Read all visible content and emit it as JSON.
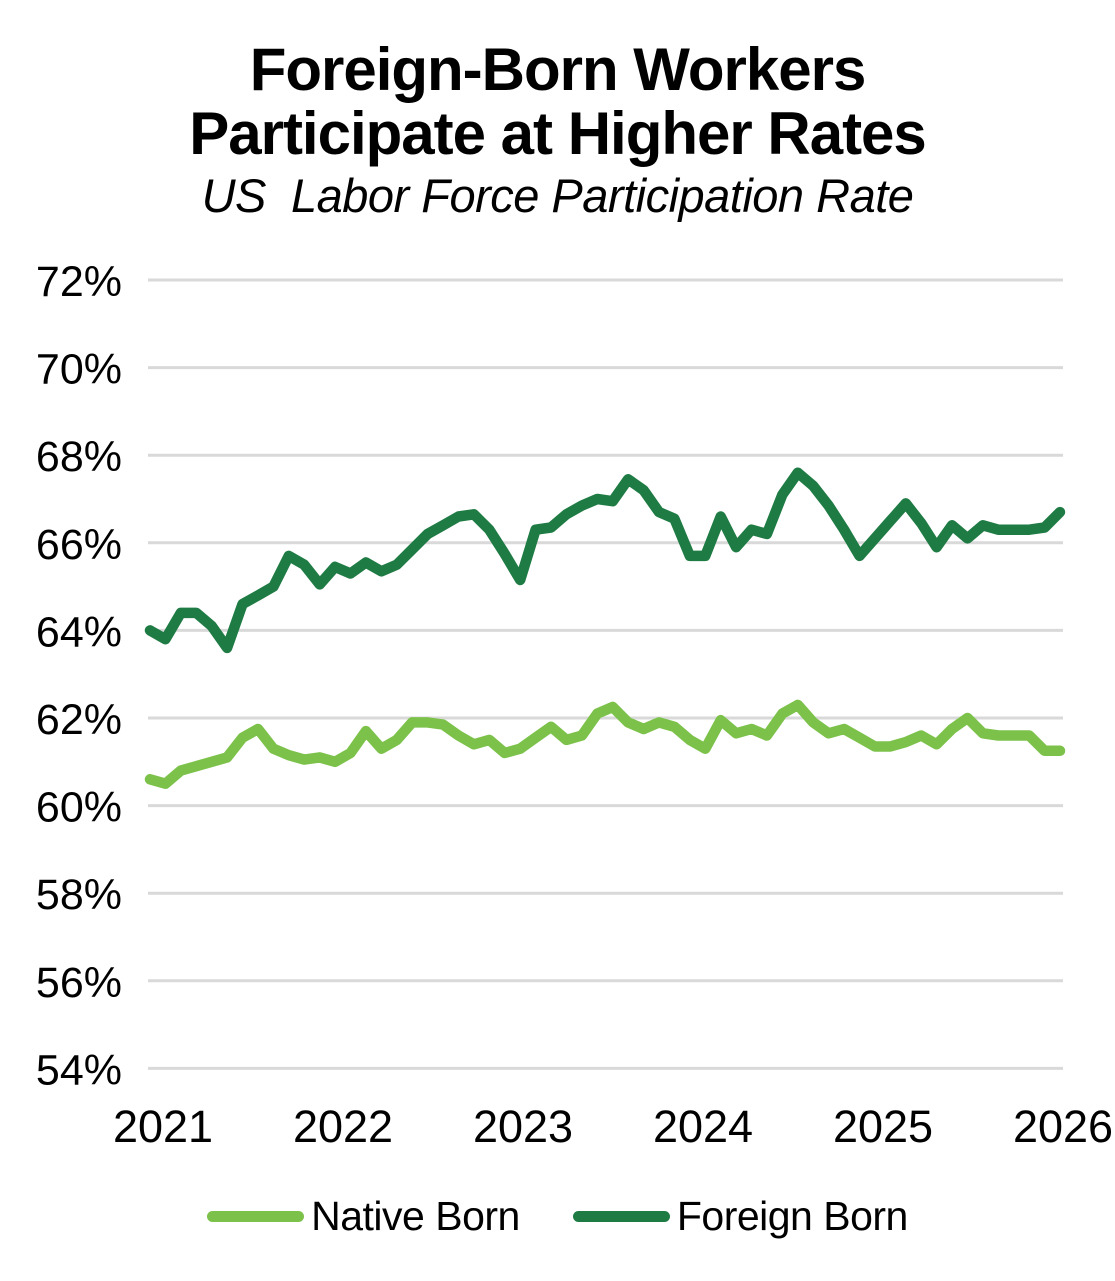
{
  "title": {
    "line1": "Foreign-Born Workers",
    "line2": "Participate at Higher Rates",
    "subtitle": "US  Labor Force Participation Rate"
  },
  "legend": {
    "items": [
      {
        "label": "Native Born",
        "color": "#7CC24A"
      },
      {
        "label": "Foreign Born",
        "color": "#1F7B44"
      }
    ]
  },
  "colors": {
    "background": "#FFFFFF",
    "gridline": "#D9D9D9",
    "text": "#000000",
    "native_born_line": "#7CC24A",
    "foreign_born_line": "#1F7B44"
  },
  "chart_data": {
    "type": "line",
    "title": "Foreign-Born Workers Participate at Higher Rates",
    "subtitle": "US  Labor Force Participation Rate",
    "frequency": "monthly",
    "x_tick_labels": [
      "2021",
      "2022",
      "2023",
      "2024",
      "2025",
      "2026"
    ],
    "y_tick_labels": [
      "72%",
      "70%",
      "68%",
      "66%",
      "64%",
      "62%",
      "60%",
      "58%",
      "56%",
      "54%"
    ],
    "ylim": [
      54,
      72
    ],
    "y_step": 2,
    "grid": "horizontal-only",
    "legend_position": "bottom",
    "series": [
      {
        "name": "Native Born",
        "color": "#7CC24A",
        "values": [
          60.6,
          60.5,
          60.8,
          60.9,
          61.0,
          61.1,
          61.55,
          61.75,
          61.3,
          61.15,
          61.05,
          61.1,
          61.0,
          61.2,
          61.7,
          61.3,
          61.5,
          61.9,
          61.9,
          61.85,
          61.6,
          61.4,
          61.5,
          61.2,
          61.3,
          61.55,
          61.8,
          61.5,
          61.6,
          62.1,
          62.25,
          61.9,
          61.75,
          61.9,
          61.8,
          61.5,
          61.3,
          61.95,
          61.65,
          61.75,
          61.6,
          62.1,
          62.3,
          61.9,
          61.65,
          61.75,
          61.55,
          61.35,
          61.35,
          61.45,
          61.6,
          61.4,
          61.75,
          62.0,
          61.65,
          61.6,
          61.6,
          61.6,
          61.25,
          61.25
        ]
      },
      {
        "name": "Foreign Born",
        "color": "#1F7B44",
        "values": [
          64.0,
          63.8,
          64.4,
          64.4,
          64.1,
          63.6,
          64.6,
          64.8,
          65.0,
          65.7,
          65.5,
          65.05,
          65.45,
          65.3,
          65.55,
          65.35,
          65.5,
          65.85,
          66.2,
          66.4,
          66.6,
          66.65,
          66.3,
          65.75,
          65.15,
          66.3,
          66.35,
          66.65,
          66.85,
          67.0,
          66.95,
          67.45,
          67.2,
          66.7,
          66.55,
          65.7,
          65.7,
          66.6,
          65.9,
          66.3,
          66.2,
          67.1,
          67.6,
          67.3,
          66.85,
          66.3,
          65.7,
          66.1,
          66.5,
          66.9,
          66.45,
          65.9,
          66.4,
          66.1,
          66.4,
          66.3,
          66.3,
          66.3,
          66.35,
          66.7
        ]
      }
    ]
  }
}
